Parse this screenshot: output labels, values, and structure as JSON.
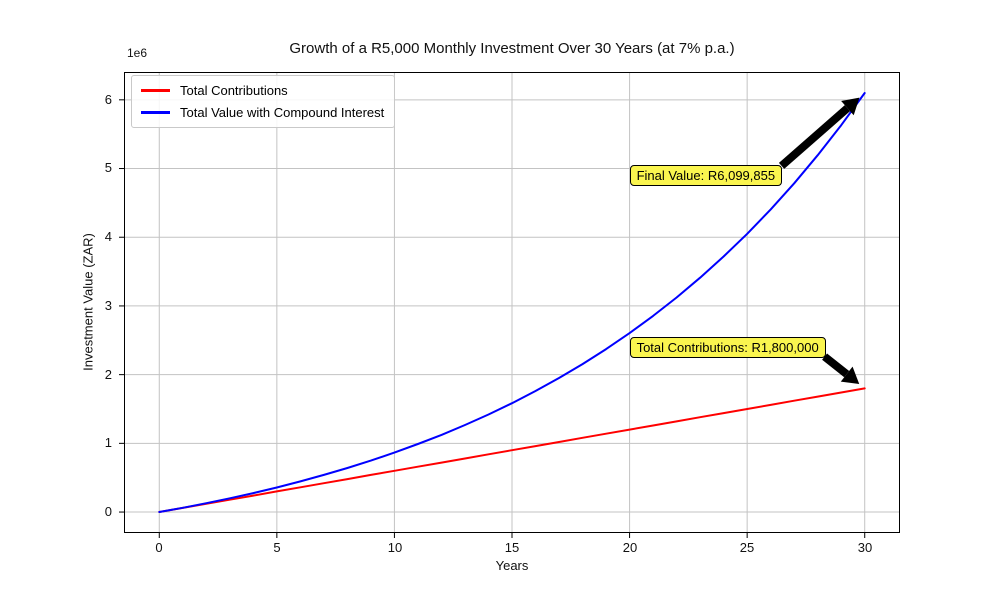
{
  "chart_data": {
    "type": "line",
    "title": "Growth of a R5,000 Monthly Investment Over 30 Years (at 7% p.a.)",
    "xlabel": "Years",
    "ylabel": "Investment Value (ZAR)",
    "y_offset_label": "1e6",
    "grid": true,
    "legend_position": "upper left",
    "xlim": [
      -1.5,
      31.5
    ],
    "ylim": [
      -305000,
      6405000
    ],
    "xticks": [
      0,
      5,
      10,
      15,
      20,
      25,
      30
    ],
    "yticks": [
      0,
      1,
      2,
      3,
      4,
      5,
      6
    ],
    "ytick_scale": 1000000,
    "x": [
      0,
      1,
      2,
      3,
      4,
      5,
      6,
      7,
      8,
      9,
      10,
      11,
      12,
      13,
      14,
      15,
      16,
      17,
      18,
      19,
      20,
      21,
      22,
      23,
      24,
      25,
      26,
      27,
      28,
      29,
      30
    ],
    "series": [
      {
        "name": "Total Contributions",
        "color": "#ff0000",
        "values": [
          0,
          60000,
          120000,
          180000,
          240000,
          300000,
          360000,
          420000,
          480000,
          540000,
          600000,
          660000,
          720000,
          780000,
          840000,
          900000,
          960000,
          1020000,
          1080000,
          1140000,
          1200000,
          1260000,
          1320000,
          1380000,
          1440000,
          1500000,
          1560000,
          1620000,
          1680000,
          1740000,
          1800000
        ]
      },
      {
        "name": "Total Value with Compound Interest",
        "color": "#0000ff",
        "values": [
          0,
          61963,
          128405,
          199648,
          276041,
          357955,
          445793,
          539981,
          640977,
          749274,
          865400,
          989924,
          1123452,
          1266624,
          1420148,
          1584776,
          1761312,
          1950593,
          2153565,
          2371210,
          2604585,
          2854835,
          3123176,
          3410913,
          3719453,
          4050298,
          4405058,
          4785465,
          5193373,
          5630768,
          6099855
        ]
      }
    ],
    "annotations": [
      {
        "label": "Final Value: R6,099,855",
        "facecolor": "#faf54f",
        "box": {
          "year": 20,
          "value": 4900000
        },
        "point": {
          "year": 30,
          "value": 6099855
        }
      },
      {
        "label": "Total Contributions: R1,800,000",
        "facecolor": "#faf54f",
        "box": {
          "year": 20,
          "value": 2400000
        },
        "point": {
          "year": 30,
          "value": 1800000
        }
      }
    ],
    "colors": {
      "grid": "#c3c3c3",
      "spine": "#000000",
      "arrow": "#000000"
    }
  }
}
